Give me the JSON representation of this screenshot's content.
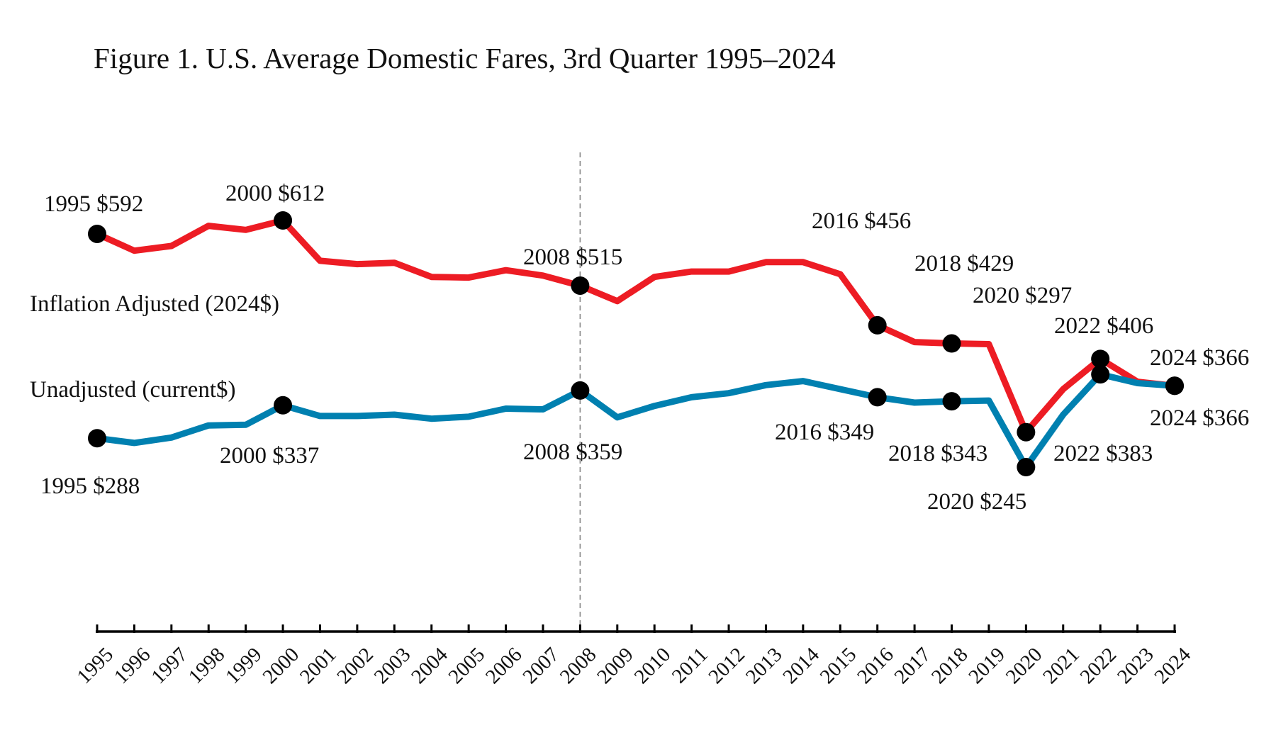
{
  "chart_data": {
    "type": "line",
    "title": "Figure 1. U.S. Average Domestic Fares, 3rd Quarter 1995–2024",
    "xlabel": "",
    "ylabel": "",
    "ylim": [
      100,
      680
    ],
    "grid": false,
    "categories": [
      "1995",
      "1996",
      "1997",
      "1998",
      "1999",
      "2000",
      "2001",
      "2002",
      "2003",
      "2004",
      "2005",
      "2006",
      "2007",
      "2008",
      "2009",
      "2010",
      "2011",
      "2012",
      "2013",
      "2014",
      "2015",
      "2016",
      "2017",
      "2018",
      "2019",
      "2020",
      "2021",
      "2022",
      "2023",
      "2024"
    ],
    "reference_line": {
      "category": "2008",
      "style": "dashed"
    },
    "series": [
      {
        "name": "Inflation Adjusted (2024$)",
        "color": "#ED1C24",
        "values": [
          592,
          567,
          574,
          604,
          598,
          612,
          552,
          547,
          549,
          528,
          527,
          538,
          530,
          515,
          492,
          528,
          536,
          536,
          550,
          550,
          532,
          456,
          431,
          429,
          428,
          297,
          361,
          406,
          372,
          366
        ],
        "marked_years": [
          "1995",
          "2000",
          "2008",
          "2016",
          "2018",
          "2020",
          "2022",
          "2024"
        ]
      },
      {
        "name": "Unadjusted (current$)",
        "color": "#0080B0",
        "values": [
          288,
          281,
          289,
          307,
          308,
          337,
          321,
          321,
          323,
          317,
          320,
          332,
          331,
          359,
          319,
          336,
          349,
          355,
          367,
          373,
          361,
          349,
          341,
          343,
          344,
          245,
          323,
          383,
          370,
          366
        ],
        "marked_years": [
          "1995",
          "2000",
          "2008",
          "2016",
          "2018",
          "2020",
          "2022",
          "2024"
        ]
      }
    ],
    "series_labels": {
      "inflation": "Inflation Adjusted (2024$)",
      "unadjusted": "Unadjusted (current$)"
    },
    "annotations": {
      "inflation": [
        {
          "year": "1995",
          "text": "1995 $592"
        },
        {
          "year": "2000",
          "text": "2000 $612"
        },
        {
          "year": "2008",
          "text": "2008 $515"
        },
        {
          "year": "2016",
          "text": "2016 $456"
        },
        {
          "year": "2018",
          "text": "2018 $429"
        },
        {
          "year": "2020",
          "text": "2020 $297"
        },
        {
          "year": "2022",
          "text": "2022 $406"
        },
        {
          "year": "2024",
          "text": "2024 $366"
        }
      ],
      "unadjusted": [
        {
          "year": "1995",
          "text": "1995 $288"
        },
        {
          "year": "2000",
          "text": "2000 $337"
        },
        {
          "year": "2008",
          "text": "2008 $359"
        },
        {
          "year": "2016",
          "text": "2016 $349"
        },
        {
          "year": "2018",
          "text": "2018 $343"
        },
        {
          "year": "2020",
          "text": "2020 $245"
        },
        {
          "year": "2022",
          "text": "2022 $383"
        },
        {
          "year": "2024",
          "text": "2024 $366"
        }
      ]
    }
  }
}
